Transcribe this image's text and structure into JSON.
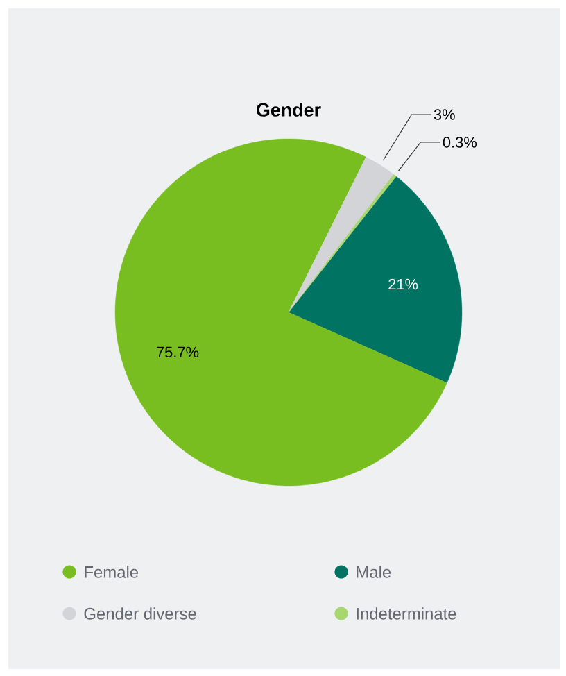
{
  "chart_data": {
    "type": "pie",
    "title": "Gender",
    "categories": [
      "Female",
      "Male",
      "Gender diverse",
      "Indeterminate"
    ],
    "values": [
      75.7,
      21,
      3,
      0.3
    ],
    "colors": [
      "#78be20",
      "#007363",
      "#d3d4d8",
      "#a8d66f"
    ],
    "value_labels": [
      "75.7%",
      "21%",
      "3%",
      "0.3%"
    ],
    "legend": "bottom"
  }
}
